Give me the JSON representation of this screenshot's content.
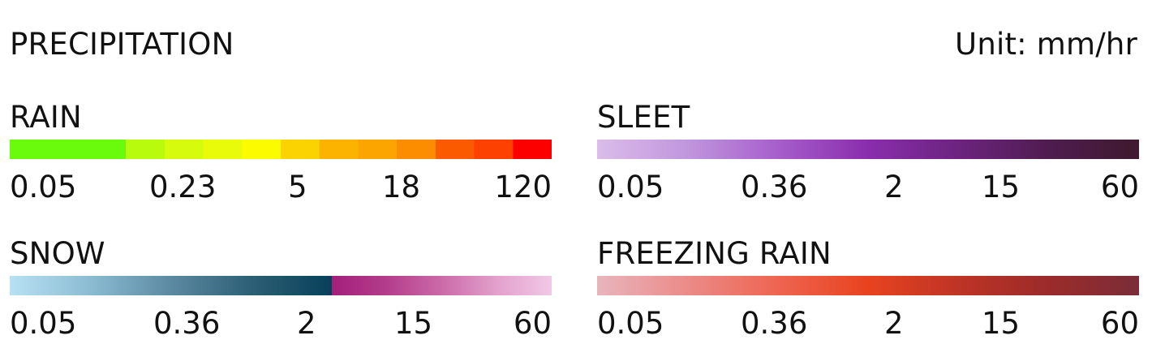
{
  "title": "PRECIPITATION",
  "unit": "Unit: mm/hr",
  "legends": [
    {
      "name": "RAIN",
      "ticks": [
        "0.05",
        "0.23",
        "5",
        "18",
        "120"
      ],
      "bar_type": "steps",
      "colors": [
        "#6afb0c",
        "#6afb0c",
        "#6afb0c",
        "#b8fb0c",
        "#d6fb0c",
        "#e9fb08",
        "#fcfb00",
        "#fbd300",
        "#fcb300",
        "#fca400",
        "#fc8c00",
        "#fc5a00",
        "#fc4100",
        "#fc0000"
      ]
    },
    {
      "name": "SLEET",
      "ticks": [
        "0.05",
        "0.36",
        "2",
        "15",
        "60"
      ],
      "bar_type": "gradient",
      "colors": [
        "#dabde9",
        "#c196dd",
        "#a65fcb",
        "#8a2dad",
        "#6c247f",
        "#4f1c4f",
        "#3f1a2e"
      ]
    },
    {
      "name": "SNOW",
      "ticks": [
        "0.05",
        "0.36",
        "2",
        "15",
        "60"
      ],
      "bar_type": "split",
      "colors_low": [
        "#b7e0f4",
        "#8bbcd2",
        "#5b8aa2",
        "#2d5f75",
        "#07405a"
      ],
      "colors_high": [
        "#a41f7a",
        "#b43d8c",
        "#cb6aa8",
        "#e3a0cc",
        "#f2c8e6"
      ]
    },
    {
      "name": "FREEZING RAIN",
      "ticks": [
        "0.05",
        "0.36",
        "2",
        "15",
        "60"
      ],
      "bar_type": "gradient",
      "colors": [
        "#e8b5bd",
        "#eb8b88",
        "#ee6451",
        "#e8431f",
        "#be3426",
        "#9b2b2a",
        "#7a2d38"
      ]
    }
  ]
}
